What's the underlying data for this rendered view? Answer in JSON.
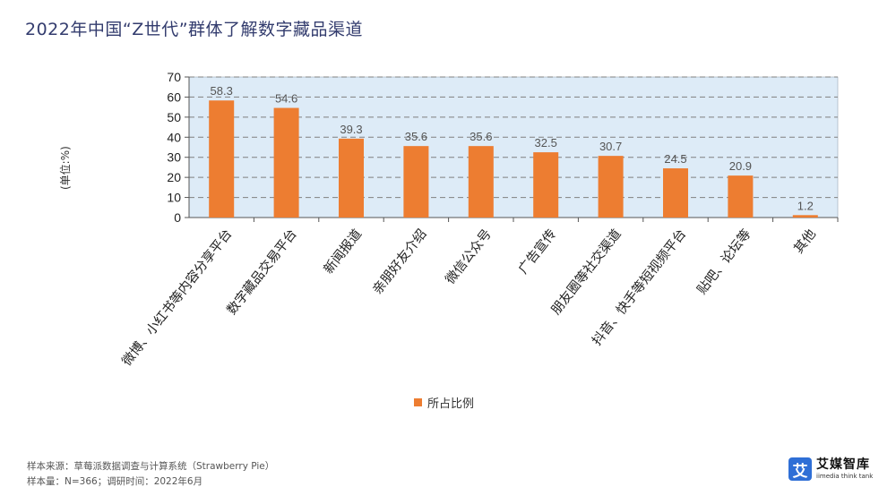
{
  "title": "2022年中国“Z世代”群体了解数字藏品渠道",
  "unit_label": "(单位:%)",
  "legend": {
    "label": "所占比例",
    "color": "#ED7D31"
  },
  "source": {
    "line1": "样本来源：草莓派数据调查与计算系统（Strawberry Pie）",
    "line2": "样本量：N=366；调研时间：2022年6月"
  },
  "logo": {
    "icon": "艾",
    "name_cn": "艾媒智库",
    "name_en": "iimedia think tank"
  },
  "chart_data": {
    "type": "bar",
    "title": "2022年中国“Z世代”群体了解数字藏品渠道",
    "ylabel": "(单位:%)",
    "categories": [
      "微博、小红书等内容分享平台",
      "数字藏品交易平台",
      "新闻报道",
      "亲朋好友介绍",
      "微信公众号",
      "广告宣传",
      "朋友圈等社交渠道",
      "抖音、快手等短视频平台",
      "贴吧、论坛等",
      "其他"
    ],
    "series": [
      {
        "name": "所占比例",
        "values": [
          58.3,
          54.6,
          39.3,
          35.6,
          35.6,
          32.5,
          30.7,
          24.5,
          20.9,
          1.2
        ]
      }
    ],
    "ylim": [
      0,
      70
    ],
    "yticks": [
      0,
      10,
      20,
      30,
      40,
      50,
      60,
      70
    ],
    "grid": true,
    "legend_position": "bottom",
    "colors": {
      "bar": "#ED7D31",
      "plot_bg": "#DDEBF7",
      "grid": "#808080"
    }
  }
}
